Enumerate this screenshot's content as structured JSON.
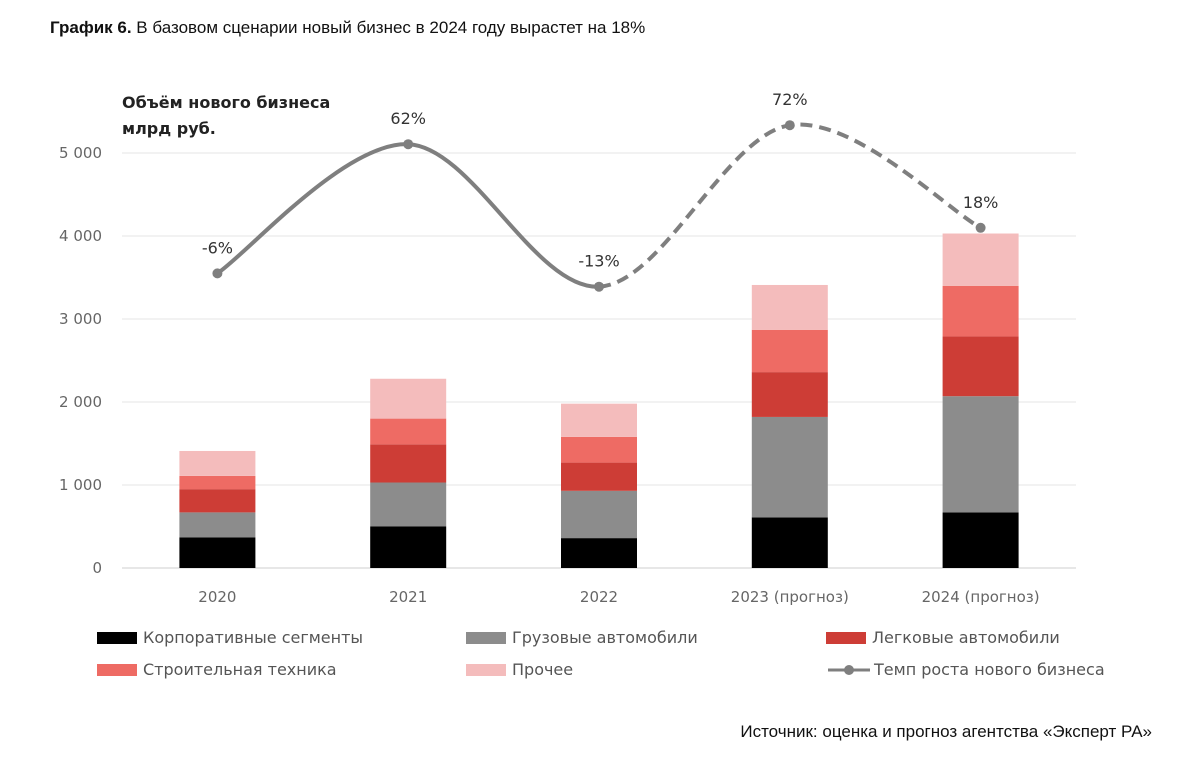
{
  "figure": {
    "label": "График 6.",
    "title": " В базовом сценарии новый бизнес в 2024 году вырастет на 18%",
    "source": "Источник: оценка и прогноз агентства «Эксперт РА»"
  },
  "chart_data": {
    "type": "bar",
    "stacked": true,
    "ylabel_line1": "Объём нового бизнеса",
    "ylabel_line2": "млрд руб.",
    "ylim": [
      0,
      5000
    ],
    "yticks": [
      0,
      1000,
      2000,
      3000,
      4000,
      5000
    ],
    "ytick_labels": [
      "0",
      "1 000",
      "2 000",
      "3 000",
      "4 000",
      "5 000"
    ],
    "grid": true,
    "categories": [
      "2020",
      "2021",
      "2022",
      "2023 (прогноз)",
      "2024 (прогноз)"
    ],
    "series": [
      {
        "name": "Корпоративные сегменты",
        "color": "#000000",
        "values": [
          370,
          500,
          360,
          610,
          670
        ]
      },
      {
        "name": "Грузовые автомобили",
        "color": "#8c8c8c",
        "values": [
          300,
          530,
          570,
          1210,
          1400
        ]
      },
      {
        "name": "Легковые автомобили",
        "color": "#cd3d36",
        "values": [
          280,
          460,
          340,
          540,
          720
        ]
      },
      {
        "name": "Строительная техника",
        "color": "#ee6b64",
        "values": [
          160,
          310,
          310,
          510,
          610
        ]
      },
      {
        "name": "Прочее",
        "color": "#f4bcbc",
        "values": [
          300,
          480,
          400,
          540,
          630
        ]
      }
    ],
    "line": {
      "name": "Темп роста нового бизнеса",
      "color": "#7f7f7f",
      "values": [
        -6,
        62,
        -13,
        72,
        18
      ],
      "labels": [
        "-6%",
        "62%",
        "-13%",
        "72%",
        "18%"
      ],
      "dashed_from_index": 2
    },
    "legend_position": "bottom"
  }
}
